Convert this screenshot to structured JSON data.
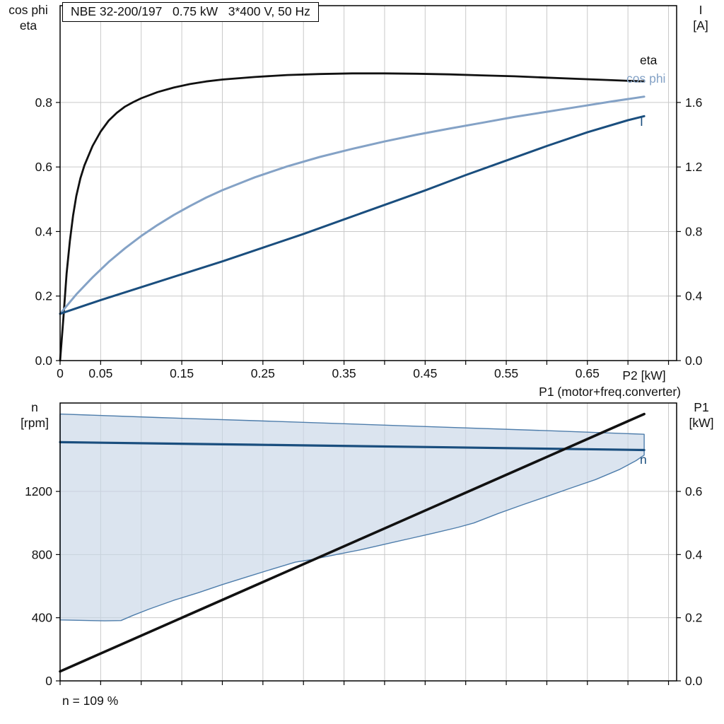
{
  "colors": {
    "grid": "#c9c9c9",
    "frame": "#000000",
    "black_curve": "#111111",
    "dark_blue": "#1a4e7e",
    "light_blue": "#84a2c6",
    "area_fill": "#c8d6e6",
    "area_stroke": "#4e7dab"
  },
  "chart_data": [
    {
      "id": "motor-performance",
      "type": "line",
      "title": "NBE 32-200/197   0.75 kW   3*400 V, 50 Hz",
      "x": {
        "label": "P2 [kW]",
        "min": 0,
        "max": 0.76,
        "tick_step": 0.05,
        "labeled_ticks": [
          {
            "v": 0,
            "t": "0"
          },
          {
            "v": 0.05,
            "t": "0.05"
          },
          {
            "v": 0.15,
            "t": "0.15"
          },
          {
            "v": 0.25,
            "t": "0.25"
          },
          {
            "v": 0.35,
            "t": "0.35"
          },
          {
            "v": 0.45,
            "t": "0.45"
          },
          {
            "v": 0.55,
            "t": "0.55"
          },
          {
            "v": 0.65,
            "t": "0.65"
          }
        ]
      },
      "y_left": {
        "title_lines": [
          "cos phi",
          "eta"
        ],
        "min": 0,
        "max": 1.1,
        "ticks": [
          {
            "v": 0,
            "t": "0.0"
          },
          {
            "v": 0.2,
            "t": "0.2"
          },
          {
            "v": 0.4,
            "t": "0.4"
          },
          {
            "v": 0.6,
            "t": "0.6"
          },
          {
            "v": 0.8,
            "t": "0.8"
          }
        ]
      },
      "y_right": {
        "title_lines": [
          "I",
          "[A]"
        ],
        "min": 0,
        "max": 2.2,
        "ticks": [
          {
            "v": 0,
            "t": "0.0"
          },
          {
            "v": 0.4,
            "t": "0.4"
          },
          {
            "v": 0.8,
            "t": "0.8"
          },
          {
            "v": 1.2,
            "t": "1.2"
          },
          {
            "v": 1.6,
            "t": "1.6"
          }
        ]
      },
      "series": [
        {
          "name": "eta",
          "axis": "left",
          "color": "#111111",
          "width": 2.8,
          "points": [
            [
              0,
              0
            ],
            [
              0.004,
              0.13
            ],
            [
              0.008,
              0.27
            ],
            [
              0.012,
              0.37
            ],
            [
              0.016,
              0.45
            ],
            [
              0.02,
              0.51
            ],
            [
              0.025,
              0.565
            ],
            [
              0.03,
              0.605
            ],
            [
              0.04,
              0.665
            ],
            [
              0.05,
              0.71
            ],
            [
              0.06,
              0.744
            ],
            [
              0.07,
              0.768
            ],
            [
              0.08,
              0.787
            ],
            [
              0.09,
              0.801
            ],
            [
              0.1,
              0.813
            ],
            [
              0.12,
              0.832
            ],
            [
              0.14,
              0.846
            ],
            [
              0.16,
              0.857
            ],
            [
              0.18,
              0.865
            ],
            [
              0.2,
              0.871
            ],
            [
              0.24,
              0.879
            ],
            [
              0.28,
              0.885
            ],
            [
              0.32,
              0.888
            ],
            [
              0.36,
              0.89
            ],
            [
              0.4,
              0.89
            ],
            [
              0.44,
              0.889
            ],
            [
              0.48,
              0.887
            ],
            [
              0.52,
              0.884
            ],
            [
              0.56,
              0.881
            ],
            [
              0.6,
              0.877
            ],
            [
              0.64,
              0.873
            ],
            [
              0.68,
              0.869
            ],
            [
              0.72,
              0.865
            ]
          ]
        },
        {
          "name": "cos phi",
          "axis": "left",
          "color": "#84a2c6",
          "width": 3,
          "points": [
            [
              0,
              0.145
            ],
            [
              0.02,
              0.205
            ],
            [
              0.04,
              0.258
            ],
            [
              0.06,
              0.306
            ],
            [
              0.08,
              0.348
            ],
            [
              0.1,
              0.386
            ],
            [
              0.12,
              0.42
            ],
            [
              0.14,
              0.451
            ],
            [
              0.16,
              0.479
            ],
            [
              0.18,
              0.505
            ],
            [
              0.2,
              0.528
            ],
            [
              0.24,
              0.568
            ],
            [
              0.28,
              0.602
            ],
            [
              0.32,
              0.631
            ],
            [
              0.36,
              0.656
            ],
            [
              0.4,
              0.679
            ],
            [
              0.44,
              0.7
            ],
            [
              0.48,
              0.719
            ],
            [
              0.52,
              0.737
            ],
            [
              0.56,
              0.755
            ],
            [
              0.6,
              0.771
            ],
            [
              0.64,
              0.787
            ],
            [
              0.68,
              0.803
            ],
            [
              0.72,
              0.818
            ]
          ]
        },
        {
          "name": "I",
          "axis": "right",
          "color": "#1a4e7e",
          "width": 3,
          "points": [
            [
              0,
              0.29
            ],
            [
              0.05,
              0.375
            ],
            [
              0.1,
              0.455
            ],
            [
              0.15,
              0.535
            ],
            [
              0.2,
              0.615
            ],
            [
              0.25,
              0.7
            ],
            [
              0.3,
              0.785
            ],
            [
              0.35,
              0.875
            ],
            [
              0.4,
              0.965
            ],
            [
              0.45,
              1.055
            ],
            [
              0.5,
              1.15
            ],
            [
              0.55,
              1.24
            ],
            [
              0.6,
              1.33
            ],
            [
              0.65,
              1.415
            ],
            [
              0.7,
              1.49
            ],
            [
              0.72,
              1.515
            ]
          ]
        }
      ]
    },
    {
      "id": "speed-and-input-power",
      "type": "line",
      "title": "",
      "x": {
        "label": "",
        "min": 0,
        "max": 0.76,
        "tick_step": 0.05,
        "labeled_ticks": []
      },
      "y_left": {
        "title_lines": [
          "n",
          "[rpm]"
        ],
        "min": 0,
        "max": 1760,
        "ticks": [
          {
            "v": 0,
            "t": "0"
          },
          {
            "v": 400,
            "t": "400"
          },
          {
            "v": 800,
            "t": "800"
          },
          {
            "v": 1200,
            "t": "1200"
          }
        ]
      },
      "y_right": {
        "title_lines": [
          "P1",
          "[kW]"
        ],
        "min": 0,
        "max": 0.88,
        "ticks": [
          {
            "v": 0,
            "t": "0.0"
          },
          {
            "v": 0.2,
            "t": "0.2"
          },
          {
            "v": 0.4,
            "t": "0.4"
          },
          {
            "v": 0.6,
            "t": "0.6"
          }
        ]
      },
      "annotations": {
        "top_right": "P1 (motor+freq.converter)",
        "bottom_left": "n = 109 %"
      },
      "area": {
        "name": "speed-operating-range",
        "fill": "#c8d6e6",
        "stroke": "#4e7dab",
        "upper": [
          [
            0,
            1690
          ],
          [
            0.12,
            1668
          ],
          [
            0.24,
            1648
          ],
          [
            0.36,
            1627
          ],
          [
            0.48,
            1606
          ],
          [
            0.6,
            1585
          ],
          [
            0.72,
            1562
          ]
        ],
        "lower": [
          [
            0,
            386
          ],
          [
            0.055,
            380
          ],
          [
            0.075,
            382
          ],
          [
            0.09,
            415
          ],
          [
            0.11,
            455
          ],
          [
            0.14,
            510
          ],
          [
            0.17,
            558
          ],
          [
            0.2,
            610
          ],
          [
            0.23,
            658
          ],
          [
            0.26,
            706
          ],
          [
            0.29,
            752
          ],
          [
            0.31,
            768
          ],
          [
            0.34,
            800
          ],
          [
            0.37,
            830
          ],
          [
            0.4,
            865
          ],
          [
            0.43,
            900
          ],
          [
            0.46,
            935
          ],
          [
            0.49,
            972
          ],
          [
            0.51,
            1000
          ],
          [
            0.54,
            1060
          ],
          [
            0.57,
            1115
          ],
          [
            0.6,
            1168
          ],
          [
            0.63,
            1222
          ],
          [
            0.66,
            1275
          ],
          [
            0.69,
            1340
          ],
          [
            0.71,
            1395
          ],
          [
            0.72,
            1430
          ]
        ]
      },
      "series": [
        {
          "name": "n",
          "axis": "left",
          "color": "#1a4e7e",
          "width": 3.2,
          "points": [
            [
              0,
              1512
            ],
            [
              0.24,
              1496
            ],
            [
              0.48,
              1479
            ],
            [
              0.72,
              1462
            ]
          ]
        },
        {
          "name": "P1 (motor+freq.converter)",
          "axis": "right",
          "color": "#111111",
          "width": 3.6,
          "points": [
            [
              0,
              0.03
            ],
            [
              0.72,
              0.845
            ]
          ]
        }
      ]
    }
  ]
}
